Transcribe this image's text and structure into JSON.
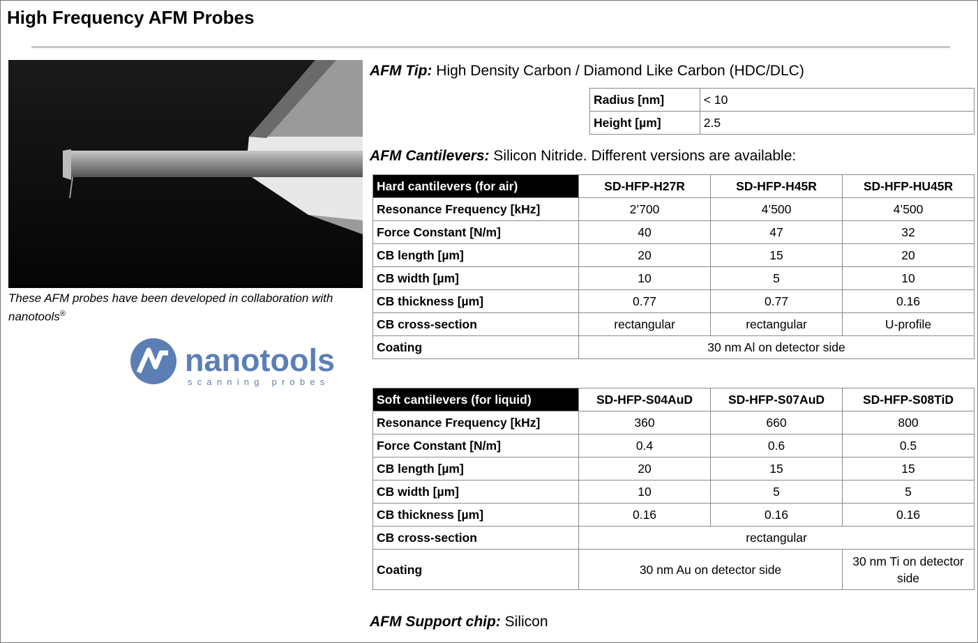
{
  "title": "High Frequency AFM Probes",
  "caption": {
    "text": "These AFM probes have been developed in collaboration with nanotools",
    "mark": "®"
  },
  "logo": {
    "name": "nanotools",
    "tagline": "scanning probes"
  },
  "tip": {
    "label": "AFM Tip:",
    "text": "High Density Carbon / Diamond Like Carbon (HDC/DLC)"
  },
  "tip_table": {
    "rows": [
      [
        "Radius [nm]",
        "< 10"
      ],
      [
        "Height [µm]",
        "2.5"
      ]
    ]
  },
  "cantilevers": {
    "label": "AFM Cantilevers:",
    "text": "Silicon Nitride. Different versions are available:"
  },
  "hard_table": {
    "header": [
      "Hard cantilevers (for air)",
      "SD-HFP-H27R",
      "SD-HFP-H45R",
      "SD-HFP-HU45R"
    ],
    "rows": [
      [
        "Resonance Frequency [kHz]",
        "2’700",
        "4’500",
        "4’500"
      ],
      [
        "Force Constant [N/m]",
        "40",
        "47",
        "32"
      ],
      [
        "CB length [µm]",
        "20",
        "15",
        "20"
      ],
      [
        "CB width [µm]",
        "10",
        "5",
        "10"
      ],
      [
        "CB thickness [µm]",
        "0.77",
        "0.77",
        "0.16"
      ],
      [
        "CB cross-section",
        "rectangular",
        "rectangular",
        "U-profile"
      ],
      [
        "Coating",
        "30 nm Al on detector side"
      ]
    ]
  },
  "soft_table": {
    "header": [
      "Soft cantilevers (for liquid)",
      "SD-HFP-S04AuD",
      "SD-HFP-S07AuD",
      "SD-HFP-S08TiD"
    ],
    "rows": [
      [
        "Resonance Frequency [kHz]",
        "360",
        "660",
        "800"
      ],
      [
        "Force Constant [N/m]",
        "0.4",
        "0.6",
        "0.5"
      ],
      [
        "CB length [µm]",
        "20",
        "15",
        "15"
      ],
      [
        "CB width [µm]",
        "10",
        "5",
        "5"
      ],
      [
        "CB thickness [µm]",
        "0.16",
        "0.16",
        "0.16"
      ],
      [
        "CB cross-section",
        "rectangular"
      ],
      [
        "Coating",
        "30 nm Au on detector side",
        "30 nm Ti on detector side"
      ]
    ]
  },
  "support": {
    "label": "AFM Support chip:",
    "text": "Silicon"
  }
}
